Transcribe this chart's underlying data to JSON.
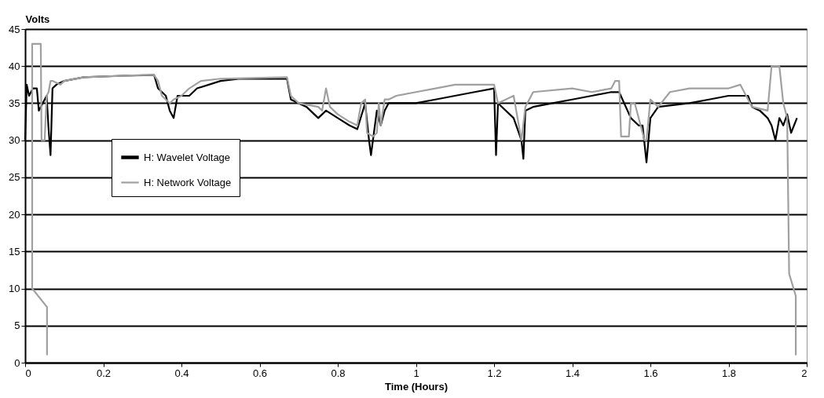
{
  "chart_data": {
    "type": "line",
    "xlabel": "Time (Hours)",
    "ylabel": "Volts",
    "xlim": [
      0,
      2
    ],
    "xticks": [
      0,
      0.2,
      0.4,
      0.6,
      0.8,
      1,
      1.2,
      1.4,
      1.6,
      1.8,
      2
    ],
    "ylim": [
      0,
      45
    ],
    "yticks": [
      0,
      5,
      10,
      15,
      20,
      25,
      30,
      35,
      40,
      45
    ],
    "grid": "y",
    "legend": "left",
    "marker": "none",
    "line_style": "solid",
    "series": [
      {
        "name": "H: Wavelet Voltage",
        "color": "#000000",
        "x": [
          0,
          0.004,
          0.01,
          0.02,
          0.03,
          0.035,
          0.045,
          0.055,
          0.06,
          0.065,
          0.07,
          0.08,
          0.1,
          0.15,
          0.25,
          0.33,
          0.34,
          0.36,
          0.37,
          0.38,
          0.39,
          0.42,
          0.44,
          0.5,
          0.55,
          0.67,
          0.68,
          0.7,
          0.72,
          0.75,
          0.77,
          0.8,
          0.83,
          0.85,
          0.87,
          0.88,
          0.885,
          0.9,
          0.91,
          0.92,
          0.93,
          1,
          1.05,
          1.1,
          1.15,
          1.2,
          1.205,
          1.21,
          1.25,
          1.27,
          1.275,
          1.28,
          1.3,
          1.35,
          1.4,
          1.45,
          1.5,
          1.52,
          1.55,
          1.57,
          1.58,
          1.59,
          1.6,
          1.62,
          1.7,
          1.75,
          1.8,
          1.85,
          1.86,
          1.88,
          1.9,
          1.91,
          1.92,
          1.93,
          1.94,
          1.95,
          1.96,
          1.975
        ],
        "values": [
          30,
          37.5,
          36,
          37,
          37,
          34,
          35,
          36,
          31.5,
          28,
          37,
          37.5,
          38,
          38.5,
          38.7,
          38.8,
          37,
          36,
          34,
          33,
          36,
          36,
          37,
          38,
          38.3,
          38.3,
          35.5,
          35,
          34.5,
          33,
          34,
          33,
          32,
          31.5,
          35,
          30,
          28,
          34,
          32,
          34,
          35,
          35,
          35.5,
          36,
          36.5,
          37,
          28,
          35,
          33,
          30,
          27.5,
          34,
          34.5,
          35,
          35.5,
          36,
          36.5,
          36.5,
          33,
          32,
          32,
          27,
          33,
          34.5,
          35,
          35.5,
          36,
          36,
          34.5,
          34,
          33,
          32,
          30,
          33,
          32,
          33.5,
          31,
          33
        ]
      },
      {
        "name": "H: Network Voltage",
        "color": "#a0a0a0",
        "x": [
          0.056,
          0.056,
          0.018,
          0.018,
          0.04,
          0.042,
          0.05,
          0.055,
          0.06,
          0.065,
          0.07,
          0.09,
          0.1,
          0.15,
          0.3,
          0.33,
          0.34,
          0.35,
          0.37,
          0.38,
          0.4,
          0.42,
          0.45,
          0.5,
          0.67,
          0.68,
          0.7,
          0.75,
          0.76,
          0.77,
          0.78,
          0.8,
          0.83,
          0.85,
          0.86,
          0.87,
          0.875,
          0.89,
          0.9,
          0.905,
          0.91,
          0.92,
          0.93,
          0.95,
          1,
          1.05,
          1.1,
          1.2,
          1.21,
          1.25,
          1.27,
          1.28,
          1.3,
          1.4,
          1.45,
          1.5,
          1.51,
          1.52,
          1.525,
          1.545,
          1.55,
          1.56,
          1.585,
          1.59,
          1.6,
          1.62,
          1.65,
          1.7,
          1.8,
          1.83,
          1.84,
          1.86,
          1.9,
          1.91,
          1.93,
          1.94,
          1.95,
          1.955,
          1.972,
          1.972
        ],
        "values": [
          1,
          7.5,
          10,
          43,
          43,
          30,
          30,
          36,
          36.5,
          38,
          38,
          37.5,
          38,
          38.5,
          38.8,
          38.8,
          38,
          36,
          35,
          35.5,
          36,
          37,
          38,
          38.3,
          38.5,
          36,
          35,
          34.5,
          34,
          37,
          34.5,
          33.5,
          32.5,
          32,
          35,
          35.5,
          31,
          30.5,
          31,
          35,
          32,
          35.5,
          35.5,
          36,
          36.5,
          37,
          37.5,
          37.5,
          35,
          36,
          30,
          34.5,
          36.5,
          37,
          36.5,
          37,
          38,
          38,
          30.5,
          30.5,
          35,
          35,
          30,
          30,
          35.5,
          34.5,
          36.5,
          37,
          37,
          37.5,
          36.5,
          34.5,
          34,
          40,
          40,
          35,
          33,
          12,
          9,
          1
        ]
      }
    ]
  }
}
